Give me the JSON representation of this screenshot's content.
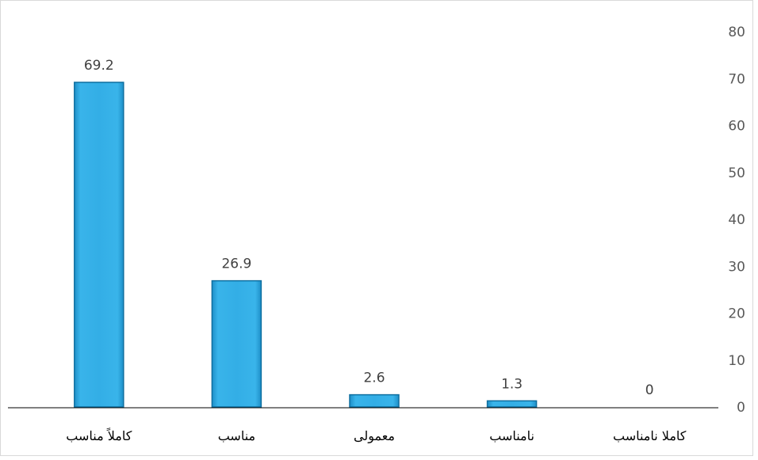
{
  "chart_data": {
    "type": "bar",
    "categories": [
      "کاملاً مناسب",
      "مناسب",
      "معمولی",
      "نامناسب",
      "کاملا نامناسب"
    ],
    "values": [
      69.2,
      26.9,
      2.6,
      1.3,
      0
    ],
    "data_labels": [
      "69.2",
      "26.9",
      "2.6",
      "1.3",
      "0"
    ],
    "y_ticks": [
      "0",
      "10",
      "20",
      "30",
      "40",
      "50",
      "60",
      "70",
      "80"
    ],
    "ylim": [
      0,
      80
    ],
    "y_axis_side": "right",
    "grid": false,
    "legend": "none",
    "bar_color": "#2fa8e0",
    "bar_edge_color": "#0f6fa0"
  }
}
